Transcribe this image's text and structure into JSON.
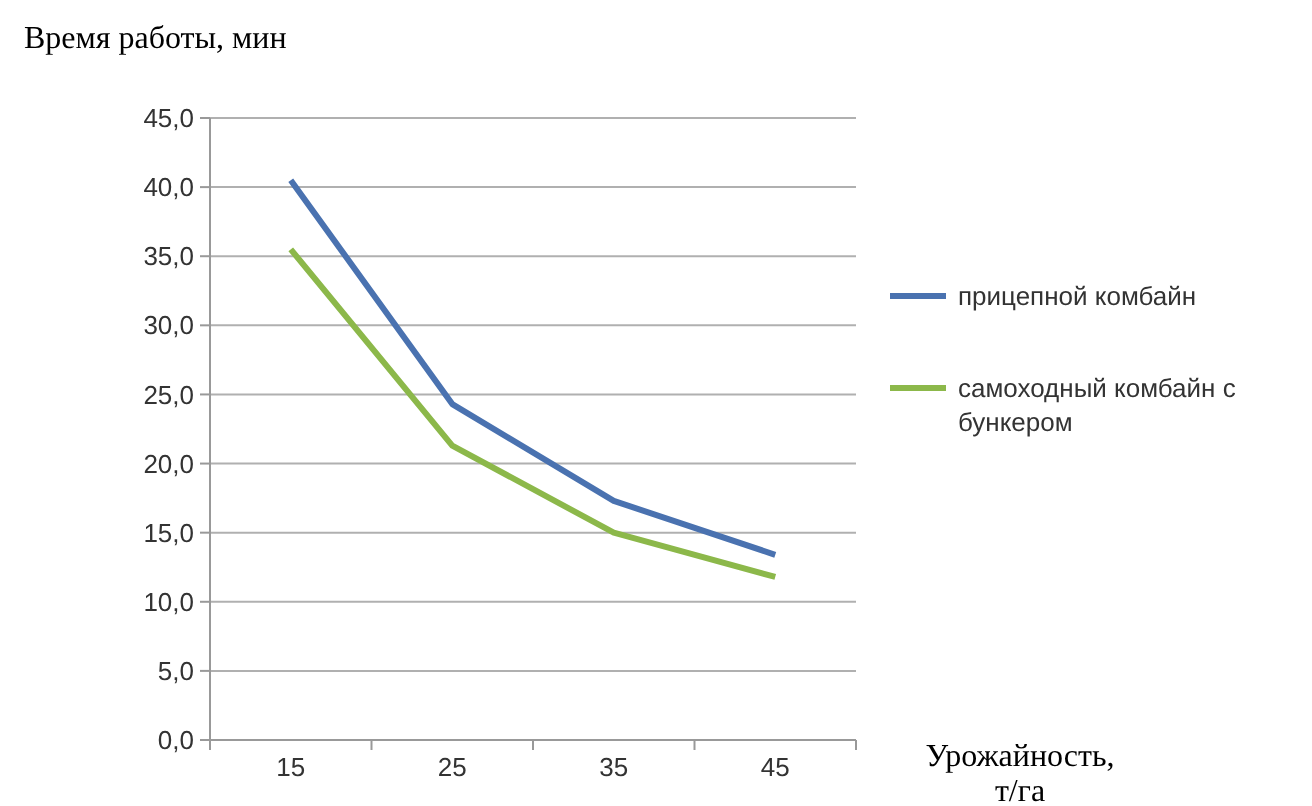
{
  "chart_data": {
    "type": "line",
    "xlabel": "Урожайность, т/га",
    "ylabel": "Время работы, мин",
    "categories": [
      "15",
      "25",
      "35",
      "45"
    ],
    "series": [
      {
        "name": "прицепной комбайн",
        "color": "#4a72b0",
        "values": [
          40.5,
          24.3,
          17.3,
          13.4
        ]
      },
      {
        "name": "самоходный комбайн с бункером",
        "color": "#8cb84a",
        "values": [
          35.5,
          21.3,
          15.0,
          11.8
        ]
      }
    ],
    "ylim": [
      0,
      45
    ],
    "yticks": [
      {
        "value": 0,
        "label": "0,0"
      },
      {
        "value": 5,
        "label": "5,0"
      },
      {
        "value": 10,
        "label": "10,0"
      },
      {
        "value": 15,
        "label": "15,0"
      },
      {
        "value": 20,
        "label": "20,0"
      },
      {
        "value": 25,
        "label": "25,0"
      },
      {
        "value": 30,
        "label": "30,0"
      },
      {
        "value": 35,
        "label": "35,0"
      },
      {
        "value": 40,
        "label": "40,0"
      },
      {
        "value": 45,
        "label": "45,0"
      }
    ],
    "grid": "y",
    "legend": "right",
    "marker": "none",
    "line_style": "solid"
  }
}
